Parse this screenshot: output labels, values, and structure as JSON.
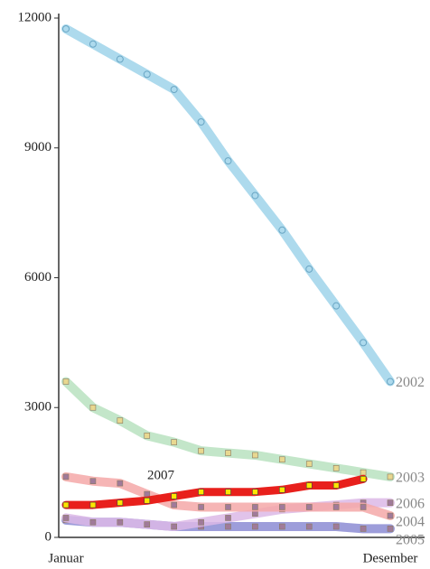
{
  "chart_data": {
    "type": "line",
    "categories": [
      "Januar",
      null,
      null,
      null,
      null,
      null,
      null,
      null,
      null,
      null,
      null,
      null,
      "Desember"
    ],
    "ylim": [
      0,
      12000
    ],
    "yticks": [
      0,
      3000,
      6000,
      9000,
      12000
    ],
    "series": [
      {
        "name": "2005",
        "color": "#8c8cd4",
        "values": [
          400,
          350,
          350,
          300,
          250,
          250,
          250,
          250,
          250,
          250,
          250,
          200,
          200
        ]
      },
      {
        "name": "2006",
        "color": "#dcb8e6",
        "values": [
          450,
          350,
          350,
          300,
          250,
          350,
          450,
          550,
          650,
          700,
          750,
          800,
          800
        ]
      },
      {
        "name": "2004",
        "color": "#f5a8a8",
        "values": [
          1400,
          1300,
          1250,
          1000,
          750,
          700,
          700,
          700,
          700,
          700,
          700,
          700,
          500
        ]
      },
      {
        "name": "2003",
        "color": "#b9e2c0",
        "values": [
          3600,
          3000,
          2700,
          2350,
          2200,
          2000,
          1950,
          1900,
          1800,
          1700,
          1600,
          1500,
          1400
        ]
      },
      {
        "name": "2007",
        "color": "#e8201c",
        "values": [
          750,
          750,
          800,
          850,
          950,
          1050,
          1050,
          1050,
          1100,
          1200,
          1200,
          1350,
          null
        ]
      },
      {
        "name": "2002",
        "color": "#9fd3ea",
        "values": [
          11750,
          11400,
          11050,
          10700,
          10350,
          9600,
          8700,
          7900,
          7100,
          6200,
          5350,
          4500,
          3600
        ]
      }
    ]
  }
}
